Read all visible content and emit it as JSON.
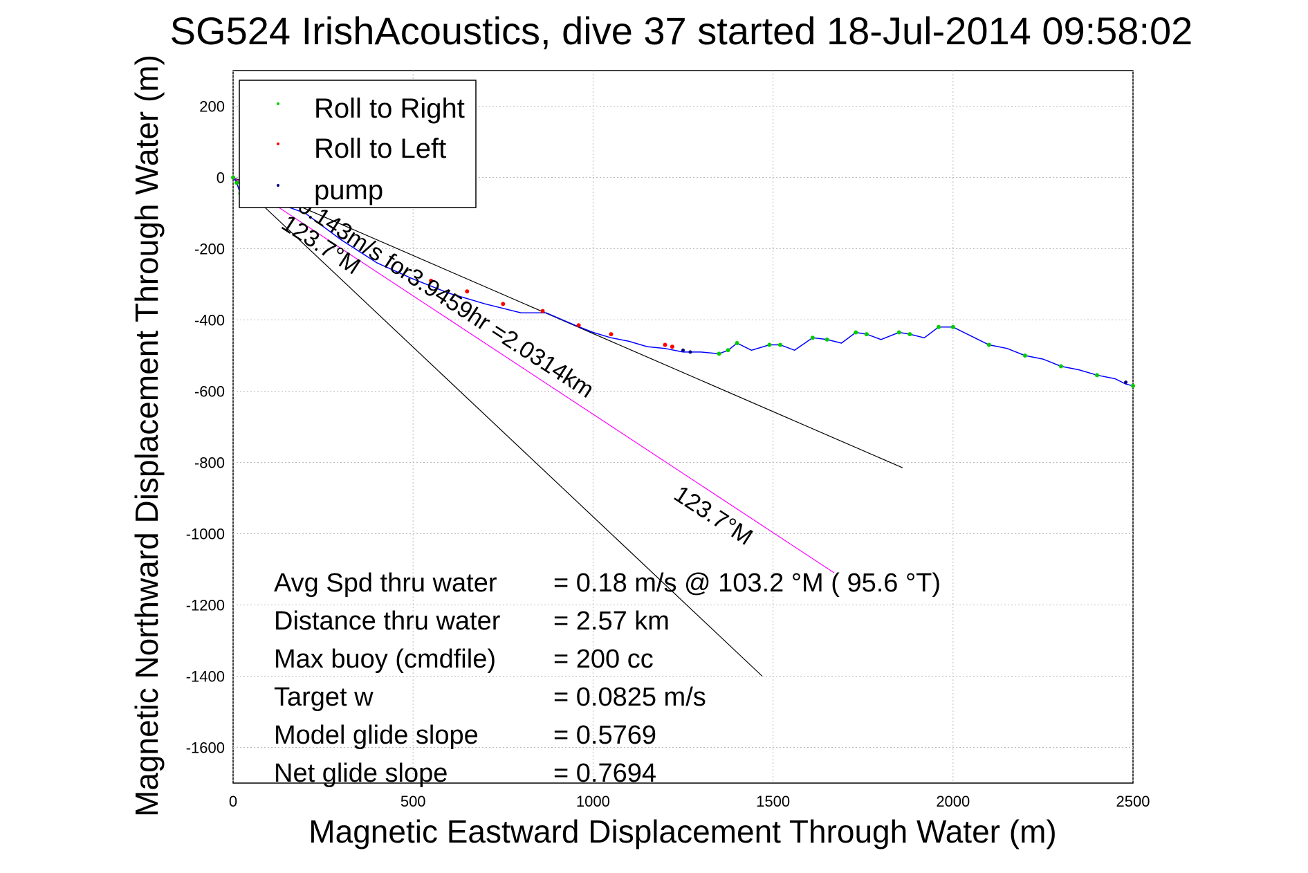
{
  "chart_data": {
    "type": "line",
    "title": "SG524 IrishAcoustics, dive 37 started 18-Jul-2014 09:58:02",
    "xlabel": "Magnetic Eastward Displacement Through Water (m)",
    "ylabel": "Magnetic Northward Displacement Through Water (m)",
    "xlim": [
      0,
      2500
    ],
    "ylim": [
      -1700,
      300
    ],
    "xticks": [
      0,
      500,
      1000,
      1500,
      2000,
      2500
    ],
    "yticks": [
      200,
      0,
      -200,
      -400,
      -600,
      -800,
      -1000,
      -1200,
      -1400,
      -1600
    ],
    "grid": true,
    "legend": {
      "placement": "top-left",
      "entries": [
        {
          "label": "Roll to Right",
          "color": "#00cc00"
        },
        {
          "label": "Roll to Left",
          "color": "#ff0000"
        },
        {
          "label": "pump",
          "color": "#000080"
        }
      ]
    },
    "track": {
      "color": "#0000ff",
      "points": [
        [
          0,
          0
        ],
        [
          10,
          -15
        ],
        [
          20,
          -45
        ],
        [
          40,
          -55
        ],
        [
          80,
          -60
        ],
        [
          130,
          -75
        ],
        [
          200,
          -100
        ],
        [
          300,
          -175
        ],
        [
          400,
          -240
        ],
        [
          500,
          -285
        ],
        [
          600,
          -325
        ],
        [
          700,
          -355
        ],
        [
          800,
          -380
        ],
        [
          870,
          -380
        ],
        [
          950,
          -415
        ],
        [
          1000,
          -435
        ],
        [
          1050,
          -450
        ],
        [
          1100,
          -460
        ],
        [
          1150,
          -475
        ],
        [
          1200,
          -480
        ],
        [
          1250,
          -490
        ],
        [
          1300,
          -490
        ],
        [
          1350,
          -495
        ],
        [
          1375,
          -485
        ],
        [
          1400,
          -465
        ],
        [
          1440,
          -485
        ],
        [
          1490,
          -470
        ],
        [
          1520,
          -470
        ],
        [
          1560,
          -485
        ],
        [
          1610,
          -450
        ],
        [
          1650,
          -455
        ],
        [
          1690,
          -465
        ],
        [
          1730,
          -435
        ],
        [
          1760,
          -440
        ],
        [
          1800,
          -455
        ],
        [
          1850,
          -435
        ],
        [
          1880,
          -440
        ],
        [
          1920,
          -450
        ],
        [
          1960,
          -420
        ],
        [
          2000,
          -420
        ],
        [
          2050,
          -445
        ],
        [
          2100,
          -470
        ],
        [
          2150,
          -480
        ],
        [
          2200,
          -500
        ],
        [
          2250,
          -510
        ],
        [
          2300,
          -530
        ],
        [
          2350,
          -540
        ],
        [
          2400,
          -555
        ],
        [
          2450,
          -565
        ],
        [
          2480,
          -580
        ],
        [
          2500,
          -585
        ]
      ]
    },
    "roll_right_points": [
      [
        0,
        0
      ],
      [
        10,
        -15
      ],
      [
        20,
        -45
      ],
      [
        1350,
        -495
      ],
      [
        1375,
        -485
      ],
      [
        1400,
        -465
      ],
      [
        1490,
        -470
      ],
      [
        1520,
        -470
      ],
      [
        1610,
        -450
      ],
      [
        1650,
        -455
      ],
      [
        1730,
        -435
      ],
      [
        1760,
        -440
      ],
      [
        1850,
        -435
      ],
      [
        1880,
        -440
      ],
      [
        1960,
        -420
      ],
      [
        2000,
        -420
      ],
      [
        2100,
        -470
      ],
      [
        2200,
        -500
      ],
      [
        2300,
        -530
      ],
      [
        2400,
        -555
      ],
      [
        2500,
        -585
      ]
    ],
    "roll_left_points": [
      [
        550,
        -290
      ],
      [
        650,
        -320
      ],
      [
        750,
        -355
      ],
      [
        860,
        -375
      ],
      [
        960,
        -415
      ],
      [
        1050,
        -440
      ],
      [
        1200,
        -470
      ],
      [
        1220,
        -475
      ]
    ],
    "pump_points": [
      [
        80,
        -60
      ],
      [
        1250,
        -485
      ],
      [
        1270,
        -490
      ],
      [
        2480,
        -575
      ]
    ],
    "heading_lines": [
      {
        "from": [
          0,
          0
        ],
        "to": [
          1860,
          -815
        ],
        "color": "#000000"
      },
      {
        "from": [
          0,
          0
        ],
        "to": [
          1470,
          -1400
        ],
        "color": "#000000"
      },
      {
        "from": [
          0,
          0
        ],
        "to": [
          1670,
          -1110
        ],
        "color": "#ff00ff"
      }
    ],
    "annotations": [
      {
        "text": "0.143m/s for3.9459hr =2.0314km",
        "x": 175,
        "y": -90,
        "angle_deg": 33
      },
      {
        "text": "123.7°M",
        "x": 130,
        "y": -140,
        "angle_deg": 33
      },
      {
        "text": "123.7°M",
        "x": 1220,
        "y": -900,
        "angle_deg": 33
      }
    ],
    "stats": [
      {
        "label": "Avg Spd thru water",
        "value": "=  0.18 m/s @ 103.2 °M ( 95.6 °T)"
      },
      {
        "label": "Distance thru water",
        "value": "=  2.57 km"
      },
      {
        "label": "Max buoy (cmdfile)",
        "value": "= 200 cc"
      },
      {
        "label": "Target w",
        "value": "= 0.0825 m/s"
      },
      {
        "label": "Model glide slope",
        "value": "= 0.5769"
      },
      {
        "label": "Net glide slope",
        "value": "= 0.7694"
      }
    ]
  }
}
